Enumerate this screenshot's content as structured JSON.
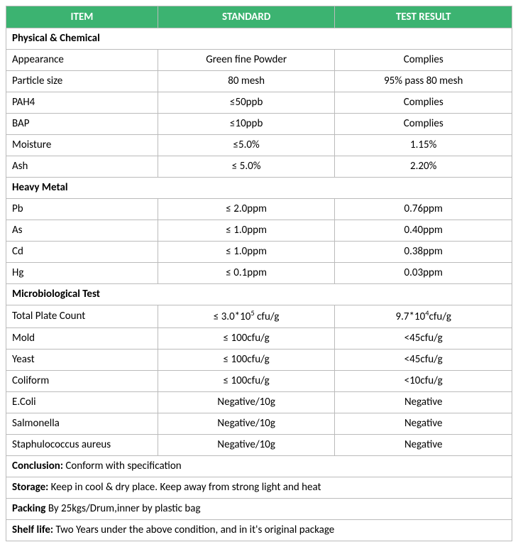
{
  "table": {
    "header_bg": "#3cb371",
    "header_fg": "#ffffff",
    "border_color": "#bbbbbb",
    "columns": {
      "item": "ITEM",
      "standard": "STANDARD",
      "result": "TEST RESULT"
    },
    "sections": [
      {
        "title": "Physical & Chemical",
        "rows": [
          {
            "item": "Appearance",
            "standard": "Green fine Powder",
            "result": "Complies"
          },
          {
            "item": "Particle size",
            "standard": "80 mesh",
            "result": "95% pass 80 mesh"
          },
          {
            "item": "PAH4",
            "standard": "≤50ppb",
            "result": "Complies"
          },
          {
            "item": "BAP",
            "standard": "≤10ppb",
            "result": "Complies"
          },
          {
            "item": "Moisture",
            "standard": "≤5.0%",
            "result": "1.15%"
          },
          {
            "item": "Ash",
            "standard": "≤ 5.0%",
            "result": "2.20%"
          }
        ]
      },
      {
        "title": "Heavy Metal",
        "rows": [
          {
            "item": "Pb",
            "standard": "≤ 2.0ppm",
            "result": "0.76ppm"
          },
          {
            "item": "As",
            "standard": "≤ 1.0ppm",
            "result": "0.40ppm"
          },
          {
            "item": "Cd",
            "standard": "≤ 1.0ppm",
            "result": "0.38ppm"
          },
          {
            "item": "Hg",
            "standard": "≤ 0.1ppm",
            "result": "0.03ppm"
          }
        ]
      },
      {
        "title": "Microbiological Test",
        "rows": [
          {
            "item": "Total Plate Count",
            "standard_html": "≤ 3.0*10<sup>5</sup> cfu/g",
            "result_html": "9.7*10<sup>4</sup>cfu/g"
          },
          {
            "item": "Mold",
            "standard": "≤ 100cfu/g",
            "result": "<45cfu/g"
          },
          {
            "item": "Yeast",
            "standard": "≤ 100cfu/g",
            "result": "<45cfu/g"
          },
          {
            "item": "Coliform",
            "standard": "≤ 100cfu/g",
            "result": "<10cfu/g"
          },
          {
            "item": "E.Coli",
            "standard": "Negative/10g",
            "result": "Negative"
          },
          {
            "item": "Salmonella",
            "standard": "Negative/10g",
            "result": "Negative"
          },
          {
            "item": "Staphulococcus aureus",
            "standard": "Negative/10g",
            "result": "Negative"
          }
        ]
      }
    ],
    "footer": [
      {
        "label": "Conclusion:",
        "text": " Conform with specification"
      },
      {
        "label": "Storage:",
        "text": " Keep in cool & dry place. Keep away from strong light and heat"
      },
      {
        "label": "Packing",
        "text": " By 25kgs/Drum,inner by plastic bag"
      },
      {
        "label": "Shelf life:",
        "text": " Two Years under the above condition, and in it's original package"
      }
    ]
  }
}
